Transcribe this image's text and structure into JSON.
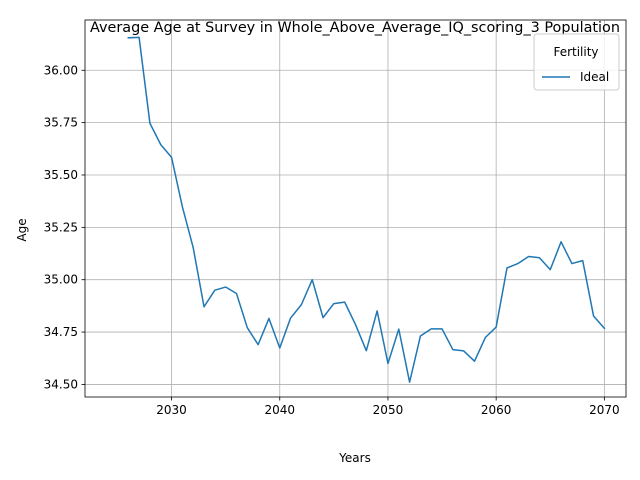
{
  "chart_data": {
    "type": "line",
    "title": "Average Age at Survey in Whole_Above_Average_IQ_scoring_3 Population",
    "xlabel": "Years",
    "ylabel": "Age",
    "xlim": [
      2022,
      2072
    ],
    "ylim": [
      34.44,
      36.24
    ],
    "xticks": [
      2030,
      2040,
      2050,
      2060,
      2070
    ],
    "yticks": [
      34.5,
      34.75,
      35.0,
      35.25,
      35.5,
      35.75,
      36.0
    ],
    "ytick_labels": [
      "34.50",
      "34.75",
      "35.00",
      "35.25",
      "35.50",
      "35.75",
      "36.00"
    ],
    "grid": true,
    "legend": {
      "title": "Fertility",
      "position": "top-right"
    },
    "series": [
      {
        "name": "Ideal",
        "color": "#1f77b4",
        "x": [
          2026,
          2027,
          2028,
          2029,
          2030,
          2031,
          2032,
          2033,
          2034,
          2035,
          2036,
          2037,
          2038,
          2039,
          2040,
          2041,
          2042,
          2043,
          2044,
          2045,
          2046,
          2047,
          2048,
          2049,
          2050,
          2051,
          2052,
          2053,
          2054,
          2055,
          2056,
          2057,
          2058,
          2059,
          2060,
          2061,
          2062,
          2063,
          2064,
          2065,
          2066,
          2067,
          2068,
          2069,
          2070
        ],
        "values": [
          36.155,
          36.157,
          35.747,
          35.645,
          35.584,
          35.348,
          35.153,
          34.871,
          34.95,
          34.965,
          34.934,
          34.771,
          34.69,
          34.815,
          34.674,
          34.817,
          34.881,
          35.0,
          34.819,
          34.886,
          34.893,
          34.786,
          34.661,
          34.851,
          34.6,
          34.764,
          34.511,
          34.731,
          34.765,
          34.765,
          34.666,
          34.66,
          34.611,
          34.724,
          34.774,
          35.056,
          35.077,
          35.111,
          35.105,
          35.048,
          35.181,
          35.077,
          35.091,
          34.827,
          34.768
        ]
      }
    ]
  }
}
